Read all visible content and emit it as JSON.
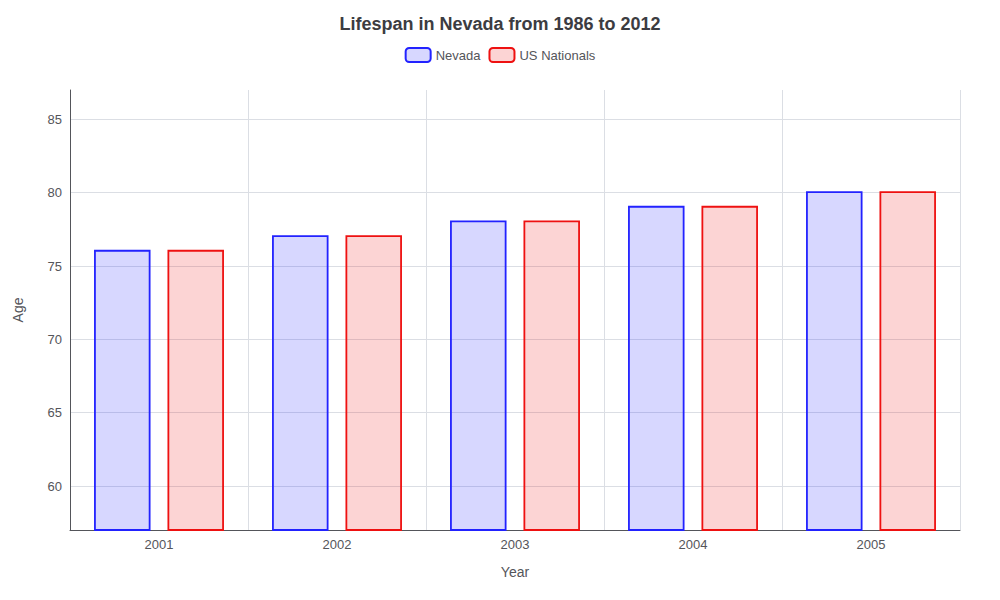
{
  "chart_data": {
    "type": "bar",
    "title": "Lifespan in Nevada from 1986 to 2012",
    "x_label": "Year",
    "y_label": "Age",
    "categories": [
      "2001",
      "2002",
      "2003",
      "2004",
      "2005"
    ],
    "series": [
      {
        "name": "Nevada",
        "color": "#2222ff",
        "values": [
          76.1,
          77.1,
          78.1,
          79.1,
          80.1
        ]
      },
      {
        "name": "US Nationals",
        "color": "#ee1111",
        "values": [
          76.1,
          77.1,
          78.1,
          79.1,
          80.1
        ]
      }
    ],
    "ylim": [
      57,
      87
    ],
    "yticks": [
      60,
      65,
      70,
      75,
      80,
      85
    ],
    "grid": true,
    "legend": "top"
  }
}
